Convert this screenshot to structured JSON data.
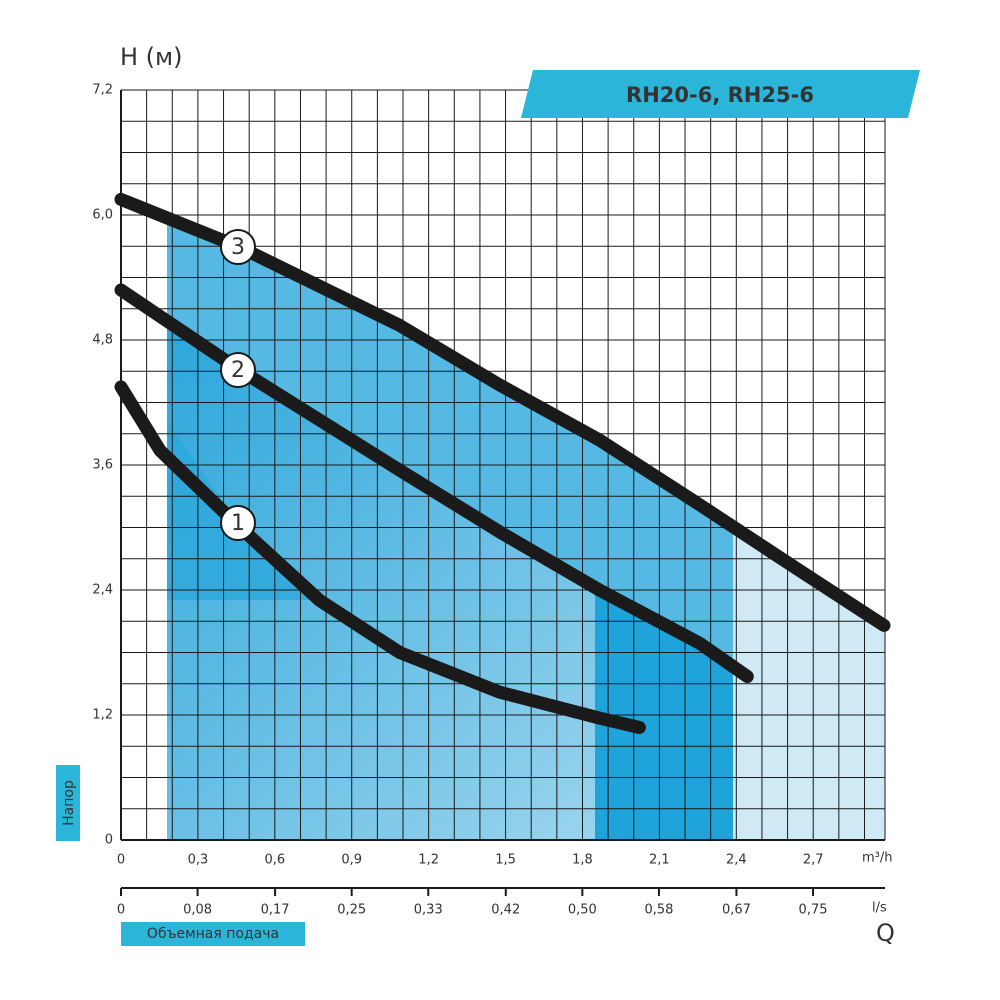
{
  "chart_data": {
    "type": "line",
    "title": "RH20-6, RH25-6",
    "y_label": "H (м)",
    "y_axis_caption": "Напор",
    "x_unit": "m³/h",
    "x2_unit": "l/s",
    "x_symbol": "Q",
    "x_axis_caption": "Объемная подача",
    "xlim": [
      0,
      2.98
    ],
    "xticks": [
      0,
      {
        "value": 0.3,
        "label": "0,3"
      },
      {
        "value": 0.6,
        "label": "0,6"
      },
      {
        "value": 0.9,
        "label": "0,9"
      },
      {
        "value": 1.2,
        "label": "1,2"
      },
      {
        "value": 1.5,
        "label": "1,5"
      },
      {
        "value": 1.8,
        "label": "1,8"
      },
      {
        "value": 2.1,
        "label": "2,1"
      },
      {
        "value": 2.4,
        "label": "2,4"
      },
      {
        "value": 2.7,
        "label": "2,7"
      }
    ],
    "x2lim": [
      0,
      0.828
    ],
    "x2ticks": [
      0,
      {
        "value": 0.083,
        "label": "0,08"
      },
      {
        "value": 0.167,
        "label": "0,17"
      },
      {
        "value": 0.25,
        "label": "0,25"
      },
      {
        "value": 0.333,
        "label": "0,33"
      },
      {
        "value": 0.417,
        "label": "0,42"
      },
      {
        "value": 0.5,
        "label": "0,50"
      },
      {
        "value": 0.583,
        "label": "0,58"
      },
      {
        "value": 0.667,
        "label": "0,67"
      },
      {
        "value": 0.75,
        "label": "0,75"
      }
    ],
    "ylim": [
      0,
      7.2
    ],
    "yticks": [
      0,
      {
        "value": 1.2,
        "label": "1,2"
      },
      {
        "value": 2.4,
        "label": "2,4"
      },
      {
        "value": 3.6,
        "label": "3,6"
      },
      {
        "value": 4.8,
        "label": "4,8"
      },
      {
        "value": 6.0,
        "label": "6,0"
      },
      {
        "value": 7.2,
        "label": "7,2"
      }
    ],
    "grid": true,
    "series": [
      {
        "name": "1",
        "color": "#1a1a1a",
        "x": [
          0,
          0.152,
          0.464,
          0.775,
          1.087,
          1.476,
          1.866,
          2.022
        ],
        "values": [
          4.35,
          3.74,
          3.0,
          2.3,
          1.8,
          1.42,
          1.17,
          1.08
        ]
      },
      {
        "name": "2",
        "color": "#1a1a1a",
        "x": [
          0,
          0.464,
          1.087,
          1.476,
          1.866,
          2.256,
          2.443
        ],
        "values": [
          5.28,
          4.51,
          3.55,
          2.96,
          2.4,
          1.89,
          1.57
        ]
      },
      {
        "name": "3",
        "color": "#1a1a1a",
        "x": [
          0,
          0.464,
          1.087,
          1.476,
          1.866,
          2.256,
          2.645,
          2.976
        ],
        "values": [
          6.15,
          5.69,
          4.94,
          4.37,
          3.84,
          3.22,
          2.59,
          2.06
        ]
      }
    ]
  }
}
